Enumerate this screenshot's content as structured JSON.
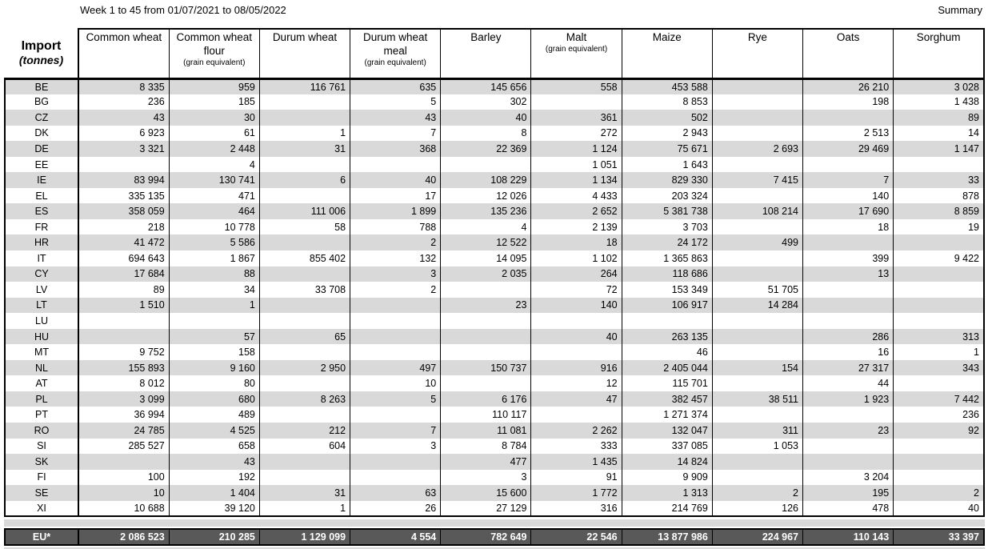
{
  "header": {
    "title": "Week 1 to 45 from 01/07/2021 to 08/05/2022",
    "summary": "Summary"
  },
  "colors": {
    "stripe": "#d9d9d9",
    "total_bg": "#595959",
    "total_text": "#ffffff",
    "border": "#000000"
  },
  "table": {
    "corner": {
      "label": "Import",
      "unit": "(tonnes)"
    },
    "columns": [
      {
        "label": "Common wheat",
        "sub": ""
      },
      {
        "label": "Common wheat flour",
        "sub": "(grain equivalent)"
      },
      {
        "label": "Durum wheat",
        "sub": ""
      },
      {
        "label": "Durum wheat meal",
        "sub": "(grain equivalent)"
      },
      {
        "label": "Barley",
        "sub": ""
      },
      {
        "label": "Malt",
        "sub": "(grain equivalent)"
      },
      {
        "label": "Maize",
        "sub": ""
      },
      {
        "label": "Rye",
        "sub": ""
      },
      {
        "label": "Oats",
        "sub": ""
      },
      {
        "label": "Sorghum",
        "sub": ""
      }
    ],
    "rows": [
      {
        "code": "BE",
        "values": [
          "8 335",
          "959",
          "116 761",
          "635",
          "145 656",
          "558",
          "453 588",
          "",
          "26 210",
          "3 028"
        ]
      },
      {
        "code": "BG",
        "values": [
          "236",
          "185",
          "",
          "5",
          "302",
          "",
          "8 853",
          "",
          "198",
          "1 438"
        ]
      },
      {
        "code": "CZ",
        "values": [
          "43",
          "30",
          "",
          "43",
          "40",
          "361",
          "502",
          "",
          "",
          "89"
        ]
      },
      {
        "code": "DK",
        "values": [
          "6 923",
          "61",
          "1",
          "7",
          "8",
          "272",
          "2 943",
          "",
          "2 513",
          "14"
        ]
      },
      {
        "code": "DE",
        "values": [
          "3 321",
          "2 448",
          "31",
          "368",
          "22 369",
          "1 124",
          "75 671",
          "2 693",
          "29 469",
          "1 147"
        ]
      },
      {
        "code": "EE",
        "values": [
          "",
          "4",
          "",
          "",
          "",
          "1 051",
          "1 643",
          "",
          "",
          ""
        ]
      },
      {
        "code": "IE",
        "values": [
          "83 994",
          "130 741",
          "6",
          "40",
          "108 229",
          "1 134",
          "829 330",
          "7 415",
          "7",
          "33"
        ]
      },
      {
        "code": "EL",
        "values": [
          "335 135",
          "471",
          "",
          "17",
          "12 026",
          "4 433",
          "203 324",
          "",
          "140",
          "878"
        ]
      },
      {
        "code": "ES",
        "values": [
          "358 059",
          "464",
          "111 006",
          "1 899",
          "135 236",
          "2 652",
          "5 381 738",
          "108 214",
          "17 690",
          "8 859"
        ]
      },
      {
        "code": "FR",
        "values": [
          "218",
          "10 778",
          "58",
          "788",
          "4",
          "2 139",
          "3 703",
          "",
          "18",
          "19"
        ]
      },
      {
        "code": "HR",
        "values": [
          "41 472",
          "5 586",
          "",
          "2",
          "12 522",
          "18",
          "24 172",
          "499",
          "",
          ""
        ]
      },
      {
        "code": "IT",
        "values": [
          "694 643",
          "1 867",
          "855 402",
          "132",
          "14 095",
          "1 102",
          "1 365 863",
          "",
          "399",
          "9 422"
        ]
      },
      {
        "code": "CY",
        "values": [
          "17 684",
          "88",
          "",
          "3",
          "2 035",
          "264",
          "118 686",
          "",
          "13",
          ""
        ]
      },
      {
        "code": "LV",
        "values": [
          "89",
          "34",
          "33 708",
          "2",
          "",
          "72",
          "153 349",
          "51 705",
          "",
          ""
        ]
      },
      {
        "code": "LT",
        "values": [
          "1 510",
          "1",
          "",
          "",
          "23",
          "140",
          "106 917",
          "14 284",
          "",
          ""
        ]
      },
      {
        "code": "LU",
        "values": [
          "",
          "",
          "",
          "",
          "",
          "",
          "",
          "",
          "",
          ""
        ]
      },
      {
        "code": "HU",
        "values": [
          "",
          "57",
          "65",
          "",
          "",
          "40",
          "263 135",
          "",
          "286",
          "313"
        ]
      },
      {
        "code": "MT",
        "values": [
          "9 752",
          "158",
          "",
          "",
          "",
          "",
          "46",
          "",
          "16",
          "1"
        ]
      },
      {
        "code": "NL",
        "values": [
          "155 893",
          "9 160",
          "2 950",
          "497",
          "150 737",
          "916",
          "2 405 044",
          "154",
          "27 317",
          "343"
        ]
      },
      {
        "code": "AT",
        "values": [
          "8 012",
          "80",
          "",
          "10",
          "",
          "12",
          "115 701",
          "",
          "44",
          ""
        ]
      },
      {
        "code": "PL",
        "values": [
          "3 099",
          "680",
          "8 263",
          "5",
          "6 176",
          "47",
          "382 457",
          "38 511",
          "1 923",
          "7 442"
        ]
      },
      {
        "code": "PT",
        "values": [
          "36 994",
          "489",
          "",
          "",
          "110 117",
          "",
          "1 271 374",
          "",
          "",
          "236"
        ]
      },
      {
        "code": "RO",
        "values": [
          "24 785",
          "4 525",
          "212",
          "7",
          "11 081",
          "2 262",
          "132 047",
          "311",
          "23",
          "92"
        ]
      },
      {
        "code": "SI",
        "values": [
          "285 527",
          "658",
          "604",
          "3",
          "8 784",
          "333",
          "337 085",
          "1 053",
          "",
          ""
        ]
      },
      {
        "code": "SK",
        "values": [
          "",
          "43",
          "",
          "",
          "477",
          "1 435",
          "14 824",
          "",
          "",
          ""
        ]
      },
      {
        "code": "FI",
        "values": [
          "100",
          "192",
          "",
          "",
          "3",
          "91",
          "9 909",
          "",
          "3 204",
          ""
        ]
      },
      {
        "code": "SE",
        "values": [
          "10",
          "1 404",
          "31",
          "63",
          "15 600",
          "1 772",
          "1 313",
          "2",
          "195",
          "2"
        ]
      },
      {
        "code": "XI",
        "values": [
          "10 688",
          "39 120",
          "1",
          "26",
          "27 129",
          "316",
          "214 769",
          "126",
          "478",
          "40"
        ]
      }
    ],
    "total": {
      "code": "EU*",
      "values": [
        "2 086 523",
        "210 285",
        "1 129 099",
        "4 554",
        "782 649",
        "22 546",
        "13 877 986",
        "224 967",
        "110 143",
        "33 397"
      ]
    }
  }
}
